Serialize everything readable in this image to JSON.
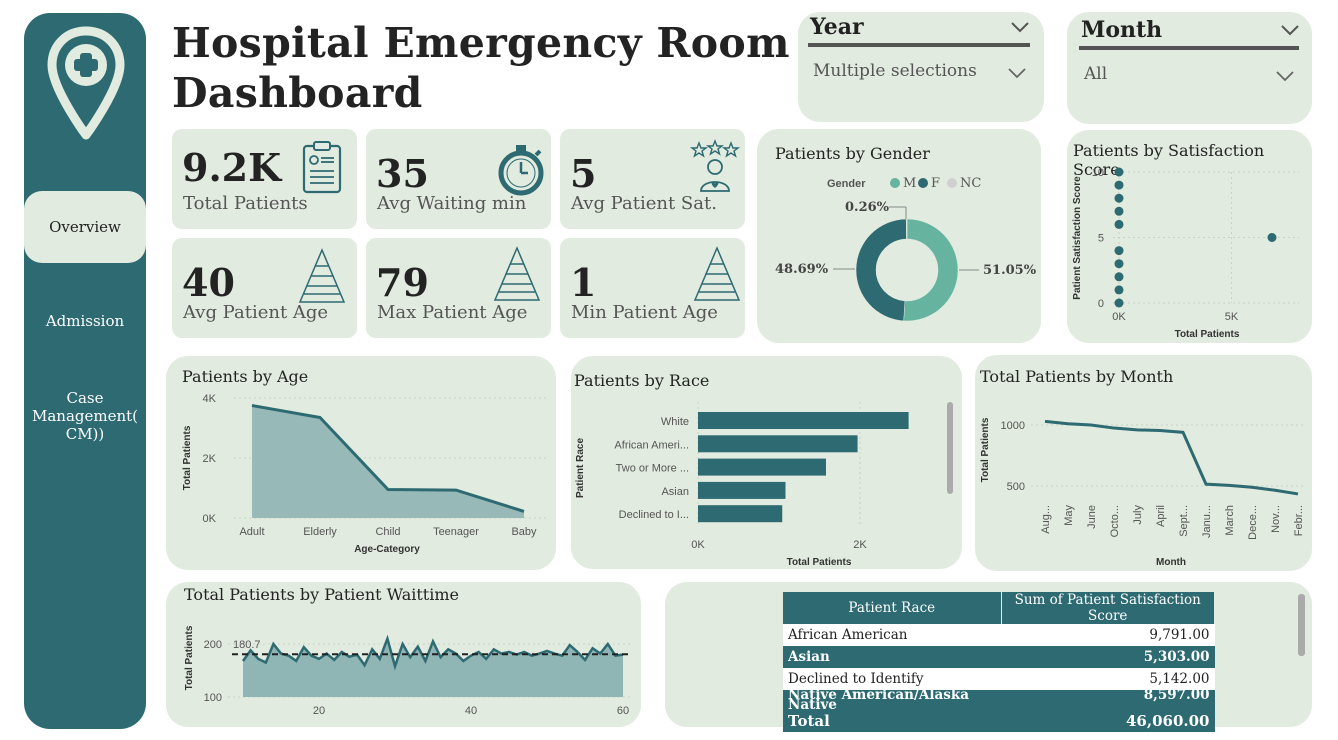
{
  "dashboard": {
    "title_line1": "Hospital Emergency Room",
    "title_line2": "Dashboard"
  },
  "sidebar": {
    "items": [
      {
        "label": "Overview",
        "active": true
      },
      {
        "label": "Admission",
        "active": false
      },
      {
        "label": "Case Management( CM))",
        "active": false
      }
    ]
  },
  "filters": {
    "year": {
      "label": "Year",
      "value": "Multiple selections"
    },
    "month": {
      "label": "Month",
      "value": "All"
    }
  },
  "kpis": [
    {
      "value": "9.2K",
      "label": "Total Patients",
      "icon": "clipboard-icon"
    },
    {
      "value": "35",
      "label": "Avg Waiting min",
      "icon": "stopwatch-icon"
    },
    {
      "value": "5",
      "label": "Avg Patient Sat.",
      "icon": "satisfaction-stars-icon"
    },
    {
      "value": "40",
      "label": "Avg Patient Age",
      "icon": "pyramid-icon"
    },
    {
      "value": "79",
      "label": "Max Patient Age",
      "icon": "pyramid-icon"
    },
    {
      "value": "1",
      "label": "Min Patient Age",
      "icon": "pyramid-icon"
    }
  ],
  "colors": {
    "primary": "#2d6a72",
    "secondary": "#66b3a0",
    "nc": "#d0d0d0",
    "panel": "#e1ebdf",
    "area_fill": "#8fb5b4"
  },
  "chart_data": [
    {
      "id": "gender",
      "type": "pie",
      "title": "Patients by Gender",
      "legend_title": "Gender",
      "legend": [
        "M",
        "F",
        "NC"
      ],
      "values": [
        51.05,
        48.69,
        0.26
      ],
      "labels": [
        "51.05%",
        "48.69%",
        "0.26%"
      ]
    },
    {
      "id": "satisfaction",
      "type": "scatter",
      "title": "Patients by Satisfaction Score",
      "xlabel": "Total Patients",
      "ylabel": "Patient Satisfaction Score",
      "x_ticks": [
        "0K",
        "5K"
      ],
      "y_ticks": [
        "10",
        "5",
        "0"
      ],
      "xlim": [
        0,
        8000
      ],
      "ylim": [
        0,
        10
      ],
      "points": [
        {
          "x": 0,
          "y": 10
        },
        {
          "x": 0,
          "y": 9
        },
        {
          "x": 0,
          "y": 8
        },
        {
          "x": 0,
          "y": 7
        },
        {
          "x": 0,
          "y": 6
        },
        {
          "x": 0,
          "y": 4
        },
        {
          "x": 0,
          "y": 3
        },
        {
          "x": 0,
          "y": 2
        },
        {
          "x": 0,
          "y": 1
        },
        {
          "x": 0,
          "y": 0
        },
        {
          "x": 6800,
          "y": 5
        }
      ]
    },
    {
      "id": "age",
      "type": "area",
      "title": "Patients by Age",
      "xlabel": "Age-Category",
      "ylabel": "Total Patients",
      "categories": [
        "Adult",
        "Elderly",
        "Child",
        "Teenager",
        "Baby"
      ],
      "values": [
        3750,
        3350,
        950,
        930,
        220
      ],
      "y_ticks": [
        "4K",
        "2K",
        "0K"
      ],
      "ylim": [
        0,
        4000
      ]
    },
    {
      "id": "race",
      "type": "bar",
      "title": "Patients by Race",
      "xlabel": "Total Patients",
      "ylabel": "Patient Race",
      "categories": [
        "White",
        "African Ameri...",
        "Two or More ...",
        "Asian",
        "Declined to I..."
      ],
      "values": [
        2600,
        1970,
        1580,
        1080,
        1040
      ],
      "x_ticks": [
        "0K",
        "2K"
      ],
      "xlim": [
        0,
        3000
      ]
    },
    {
      "id": "month",
      "type": "line",
      "title": "Total Patients by Month",
      "xlabel": "Month",
      "ylabel": "Total Patients",
      "categories": [
        "Aug...",
        "May",
        "June",
        "Octo...",
        "July",
        "April",
        "Sept...",
        "Janu...",
        "March",
        "Dece...",
        "Nov...",
        "Febr..."
      ],
      "values": [
        1030,
        1010,
        1000,
        975,
        960,
        955,
        940,
        515,
        505,
        490,
        465,
        435
      ],
      "y_ticks": [
        "1000",
        "500"
      ],
      "ylim": [
        300,
        1100
      ]
    },
    {
      "id": "waittime",
      "type": "area",
      "title": "Total Patients by Patient Waittime",
      "xlabel": "",
      "ylabel": "Total Patients",
      "x_ticks": [
        "20",
        "40",
        "60"
      ],
      "y_ticks": [
        "200",
        "100"
      ],
      "xlim": [
        8,
        62
      ],
      "ylim": [
        100,
        230
      ],
      "average_label": "180.7",
      "average": 180.7,
      "x": [
        10,
        11,
        12,
        13,
        14,
        15,
        16,
        17,
        18,
        19,
        20,
        21,
        22,
        23,
        24,
        25,
        26,
        27,
        28,
        29,
        30,
        31,
        32,
        33,
        34,
        35,
        36,
        37,
        38,
        39,
        40,
        41,
        42,
        43,
        44,
        45,
        46,
        47,
        48,
        49,
        50,
        51,
        52,
        53,
        54,
        55,
        56,
        57,
        58,
        59,
        60
      ],
      "values": [
        168,
        188,
        172,
        165,
        200,
        182,
        178,
        168,
        194,
        178,
        172,
        182,
        170,
        185,
        176,
        180,
        160,
        190,
        172,
        210,
        158,
        200,
        175,
        195,
        168,
        205,
        175,
        190,
        182,
        168,
        178,
        185,
        172,
        190,
        182,
        185,
        180,
        185,
        178,
        182,
        187,
        182,
        178,
        198,
        185,
        170,
        192,
        182,
        200,
        178,
        180
      ]
    },
    {
      "id": "race_table",
      "type": "table",
      "columns": [
        "Patient Race",
        "Sum of Patient Satisfaction Score"
      ],
      "rows": [
        [
          "African American",
          "9,791.00"
        ],
        [
          "Asian",
          "5,303.00"
        ],
        [
          "Declined to Identify",
          "5,142.00"
        ],
        [
          "Native American/Alaska Native",
          "8,597.00"
        ]
      ],
      "total": [
        "Total",
        "46,060.00"
      ]
    }
  ]
}
